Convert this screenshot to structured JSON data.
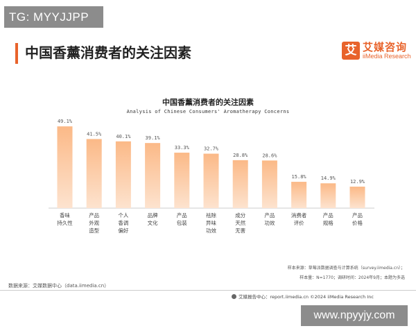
{
  "watermark_top": "TG: MYYJJPP",
  "watermark_bottom": "www.npyyjy.com",
  "page_title": "中国香薰消费者的关注因素",
  "logo": {
    "mark": "艾",
    "name_cn": "艾媒咨询",
    "name_en": "iiMedia Research"
  },
  "source_left": "数据来源：艾媒数据中心（data.iimedia.cn）",
  "source_right_1": "样本来源：草莓派数据调查与计算系统（survey.iimedia.cn）；",
  "source_right_2": "样本量：N=1770；调研时间：2024年9月；本题为多选",
  "footer": "艾媒报告中心：report.iimedia.cn   ©2024   iiMedia Research Inc",
  "colors": {
    "accent": "#e8632b",
    "bar_top": "#fbb987",
    "bar_bottom": "#fde3cf",
    "label": "#555555",
    "axis": "#bbbbbb"
  },
  "chart_data": {
    "type": "bar",
    "title": "中国香薰消费者的关注因素",
    "subtitle": "Analysis of Chinese Consumers' Aromatherapy Concerns",
    "categories": [
      [
        "香味",
        "持久性"
      ],
      [
        "产品",
        "外观",
        "造型"
      ],
      [
        "个人",
        "香调",
        "偏好"
      ],
      [
        "品牌",
        "文化"
      ],
      [
        "产品",
        "包装"
      ],
      [
        "祛除",
        "异味",
        "功效"
      ],
      [
        "成分",
        "天然",
        "无害"
      ],
      [
        "产品",
        "功效"
      ],
      [
        "消费者",
        "评价"
      ],
      [
        "产品",
        "规格"
      ],
      [
        "产品",
        "价格"
      ]
    ],
    "values": [
      49.1,
      41.5,
      40.1,
      39.1,
      33.3,
      32.7,
      28.8,
      28.6,
      15.8,
      14.9,
      12.9
    ],
    "value_labels": [
      "49.1%",
      "41.5%",
      "40.1%",
      "39.1%",
      "33.3%",
      "32.7%",
      "28.8%",
      "28.6%",
      "15.8%",
      "14.9%",
      "12.9%"
    ],
    "ylim": [
      0,
      50
    ]
  }
}
